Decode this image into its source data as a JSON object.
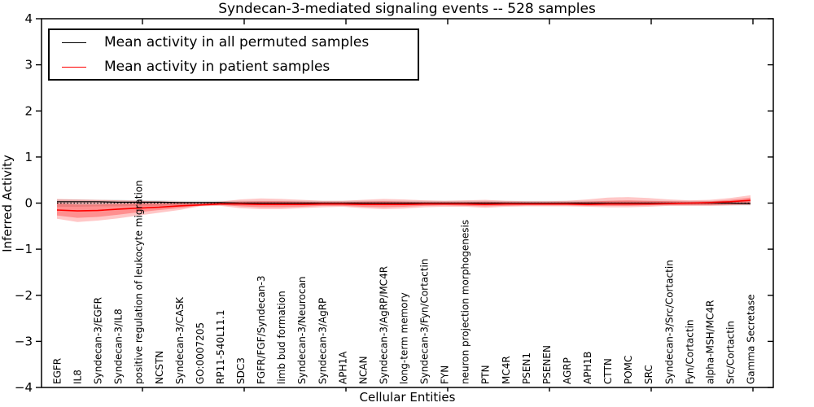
{
  "figure": {
    "title": "Syndecan-3-mediated signaling events -- 528 samples",
    "xlabel": "Cellular Entities",
    "ylabel": "Inferred Activity"
  },
  "legend": {
    "items": [
      {
        "label": "Mean activity in all permuted samples",
        "color": "#000000"
      },
      {
        "label": "Mean activity in patient samples",
        "color": "#ff0000"
      }
    ]
  },
  "chart_data": {
    "type": "line",
    "title": "Syndecan-3-mediated signaling events -- 528 samples",
    "xlabel": "Cellular Entities",
    "ylabel": "Inferred Activity",
    "ylim": [
      -4,
      4
    ],
    "yticks": [
      -4,
      -3,
      -2,
      -1,
      0,
      1,
      2,
      3,
      4
    ],
    "grid": false,
    "legend_position": "upper left",
    "zero_line": {
      "y": 0,
      "style": "dotted",
      "color": "#000000"
    },
    "categories": [
      "EGFR",
      "IL8",
      "Syndecan-3/EGFR",
      "Syndecan-3/IL8",
      "positive regulation of leukocyte migration",
      "NCSTN",
      "Syndecan-3/CASK",
      "GO:0007205",
      "RP11-540L11.1",
      "SDC3",
      "FGFR/FGF/Syndecan-3",
      "limb bud formation",
      "Syndecan-3/Neurocan",
      "Syndecan-3/AgRP",
      "APH1A",
      "NCAN",
      "Syndecan-3/AgRP/MC4R",
      "long-term memory",
      "Syndecan-3/Fyn/Cortactin",
      "FYN",
      "neuron projection morphogenesis",
      "PTN",
      "MC4R",
      "PSEN1",
      "PSENEN",
      "AGRP",
      "APH1B",
      "CTTN",
      "POMC",
      "SRC",
      "Syndecan-3/Src/Cortactin",
      "Fyn/Cortactin",
      "alpha-MSH/MC4R",
      "Src/Cortactin",
      "Gamma Secretase"
    ],
    "series": [
      {
        "name": "Mean activity in all permuted samples",
        "color": "#000000",
        "width": 1.2,
        "values": [
          0.03,
          0.03,
          0.03,
          0.02,
          0.02,
          0.02,
          0.01,
          0.01,
          0.01,
          0,
          0,
          0,
          0,
          0,
          0,
          0,
          0,
          0,
          0,
          0,
          0,
          0,
          0,
          0,
          0,
          0,
          0,
          0,
          0,
          0,
          0,
          0,
          0,
          0,
          -0.01
        ]
      },
      {
        "name": "Mean activity in patient samples",
        "color": "#ff0000",
        "width": 1.6,
        "values": [
          -0.15,
          -0.17,
          -0.16,
          -0.13,
          -0.11,
          -0.09,
          -0.06,
          -0.04,
          -0.02,
          -0.02,
          -0.03,
          -0.03,
          -0.03,
          -0.02,
          -0.02,
          -0.03,
          -0.03,
          -0.03,
          -0.02,
          -0.02,
          -0.02,
          -0.03,
          -0.02,
          -0.02,
          -0.02,
          -0.02,
          -0.03,
          -0.02,
          -0.02,
          -0.02,
          -0.01,
          0,
          0.01,
          0.03,
          0.06
        ]
      }
    ],
    "bands": [
      {
        "name": "permuted-sample-range",
        "color": "rgba(0,0,0,0.13)",
        "upper": [
          0.08,
          0.08,
          0.07,
          0.07,
          0.06,
          0.06,
          0.05,
          0.05,
          0.05,
          0.05,
          0.05,
          0.05,
          0.05,
          0.05,
          0.05,
          0.05,
          0.05,
          0.05,
          0.05,
          0.05,
          0.05,
          0.05,
          0.05,
          0.05,
          0.05,
          0.05,
          0.05,
          0.05,
          0.05,
          0.05,
          0.05,
          0.05,
          0.05,
          0.05,
          0.05
        ],
        "lower": [
          -0.08,
          -0.08,
          -0.07,
          -0.07,
          -0.06,
          -0.06,
          -0.05,
          -0.05,
          -0.05,
          -0.05,
          -0.05,
          -0.05,
          -0.05,
          -0.05,
          -0.05,
          -0.05,
          -0.05,
          -0.05,
          -0.05,
          -0.05,
          -0.05,
          -0.05,
          -0.05,
          -0.05,
          -0.05,
          -0.05,
          -0.05,
          -0.05,
          -0.05,
          -0.05,
          -0.05,
          -0.05,
          -0.05,
          -0.05,
          -0.05
        ]
      },
      {
        "name": "patient-outer-range",
        "color": "rgba(255,0,0,0.22)",
        "upper": [
          0.09,
          0.08,
          0.07,
          0.06,
          0.05,
          0.04,
          0.03,
          0.02,
          0.03,
          0.08,
          0.1,
          0.09,
          0.07,
          0.05,
          0.05,
          0.07,
          0.09,
          0.08,
          0.06,
          0.05,
          0.06,
          0.07,
          0.05,
          0.04,
          0.04,
          0.05,
          0.08,
          0.12,
          0.13,
          0.11,
          0.08,
          0.06,
          0.07,
          0.11,
          0.17
        ],
        "lower": [
          -0.34,
          -0.41,
          -0.38,
          -0.33,
          -0.27,
          -0.21,
          -0.15,
          -0.07,
          -0.06,
          -0.11,
          -0.13,
          -0.13,
          -0.11,
          -0.09,
          -0.08,
          -0.11,
          -0.13,
          -0.12,
          -0.09,
          -0.08,
          -0.08,
          -0.1,
          -0.08,
          -0.07,
          -0.07,
          -0.07,
          -0.08,
          -0.09,
          -0.09,
          -0.08,
          -0.06,
          -0.06,
          -0.06,
          -0.05,
          -0.04
        ]
      },
      {
        "name": "patient-inner-range",
        "color": "rgba(255,0,0,0.28)",
        "upper": [
          -0.01,
          -0.03,
          -0.03,
          -0.02,
          -0.01,
          -0.01,
          0,
          -0.01,
          0.01,
          0.03,
          0.04,
          0.04,
          0.03,
          0.02,
          0.02,
          0.03,
          0.04,
          0.03,
          0.02,
          0.02,
          0.02,
          0.03,
          0.02,
          0.01,
          0.01,
          0.02,
          0.03,
          0.05,
          0.06,
          0.05,
          0.04,
          0.03,
          0.04,
          0.07,
          0.12
        ],
        "lower": [
          -0.27,
          -0.32,
          -0.3,
          -0.25,
          -0.2,
          -0.15,
          -0.11,
          -0.06,
          -0.04,
          -0.07,
          -0.09,
          -0.09,
          -0.08,
          -0.06,
          -0.06,
          -0.08,
          -0.09,
          -0.08,
          -0.06,
          -0.05,
          -0.06,
          -0.07,
          -0.06,
          -0.05,
          -0.05,
          -0.05,
          -0.06,
          -0.06,
          -0.06,
          -0.05,
          -0.04,
          -0.04,
          -0.04,
          -0.03,
          -0.02
        ]
      }
    ]
  }
}
